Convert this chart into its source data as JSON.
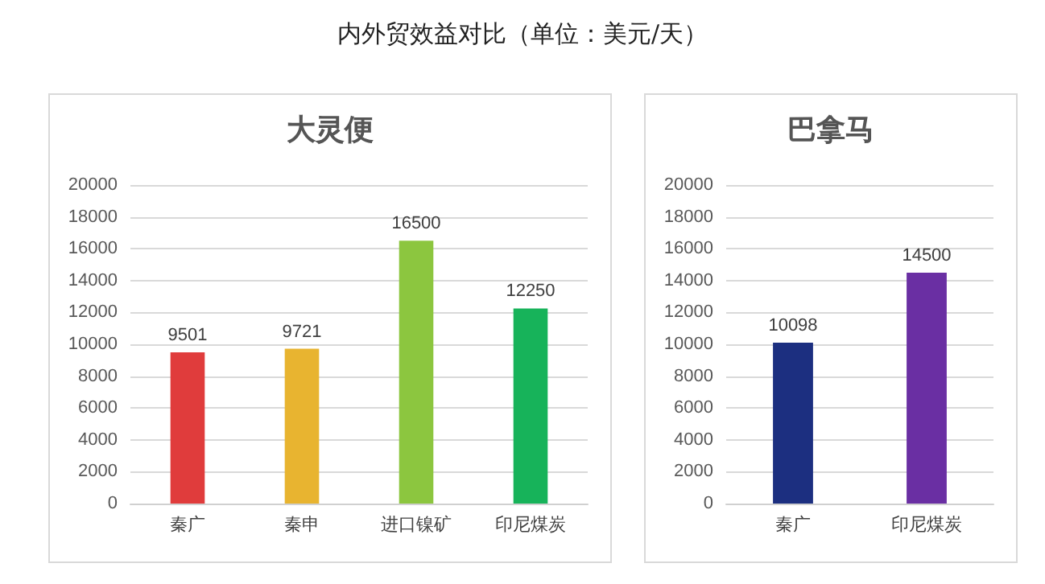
{
  "chart_data": [
    {
      "type": "bar",
      "title": "大灵便",
      "annotations": [
        "内外贸效益对比（单位：美元/天）"
      ],
      "categories": [
        "秦广",
        "秦申",
        "进口镍矿",
        "印尼煤炭"
      ],
      "values": [
        9501,
        9721,
        16500,
        12250
      ],
      "colors": [
        "#e03c3c",
        "#e8b430",
        "#8cc63f",
        "#17b35a"
      ],
      "ylim": [
        0,
        20000
      ],
      "yticks": [
        0,
        2000,
        4000,
        6000,
        8000,
        10000,
        12000,
        14000,
        16000,
        18000,
        20000
      ],
      "grid": "y",
      "data_labels": true
    },
    {
      "type": "bar",
      "title": "巴拿马",
      "categories": [
        "秦广",
        "印尼煤炭"
      ],
      "values": [
        10098,
        14500
      ],
      "colors": [
        "#1c2f80",
        "#6a2fa3"
      ],
      "ylim": [
        0,
        20000
      ],
      "yticks": [
        0,
        2000,
        4000,
        6000,
        8000,
        10000,
        12000,
        14000,
        16000,
        18000,
        20000
      ],
      "grid": "y",
      "data_labels": true
    }
  ]
}
